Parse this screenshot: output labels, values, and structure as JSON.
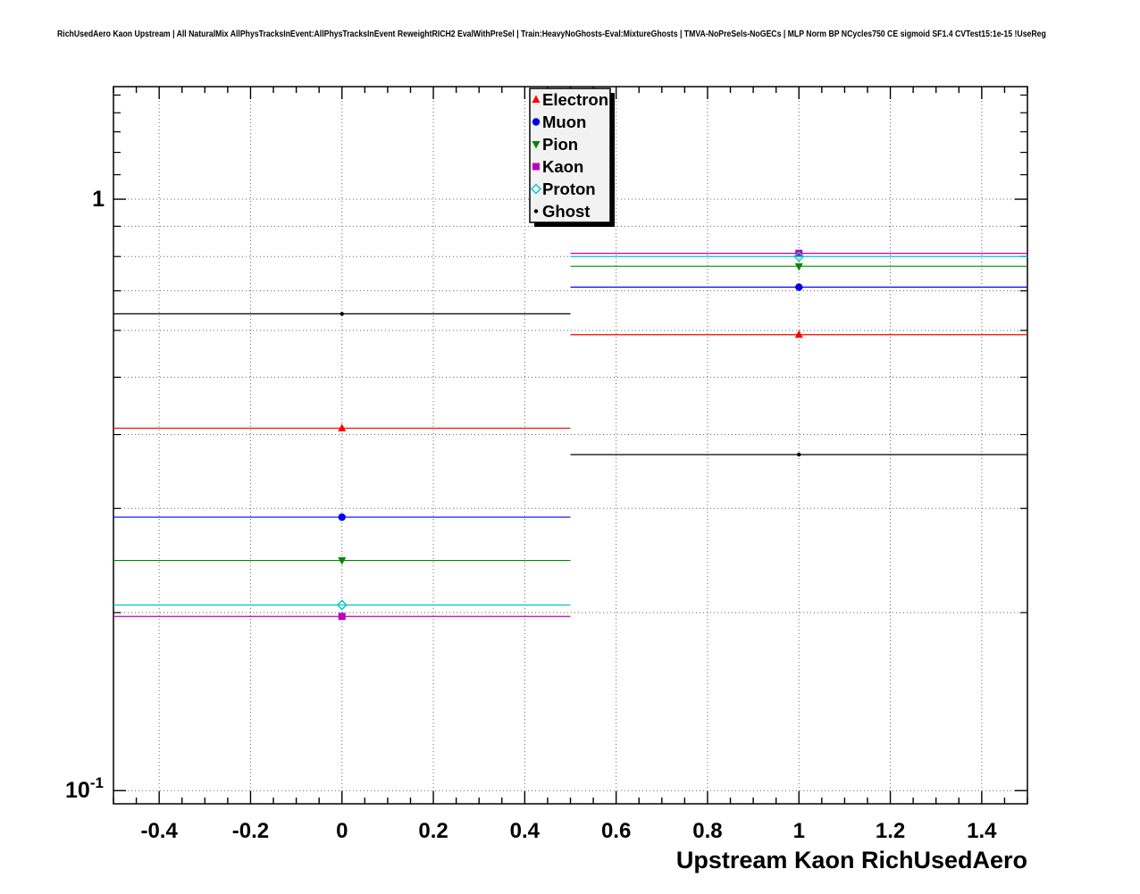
{
  "chart_data": {
    "type": "scatter",
    "title": "RichUsedAero Kaon Upstream | All NaturalMix AllPhysTracksInEvent:AllPhysTracksInEvent ReweightRICH2 EvalWithPreSel | Train:HeavyNoGhosts-Eval:MixtureGhosts | TMVA-NoPreSels-NoGECs | MLP Norm BP NCycles750 CE sigmoid SF1.4 CVTest15:1e-15 !UseReg",
    "xlabel": "Upstream Kaon RichUsedAero",
    "ylabel": "",
    "xlim": [
      -0.5,
      1.5
    ],
    "ylim": [
      0.095,
      1.55
    ],
    "yscale": "log",
    "grid": true,
    "x_ticks": [
      -0.4,
      -0.2,
      0,
      0.2,
      0.4,
      0.6,
      0.8,
      1,
      1.2,
      1.4
    ],
    "x_tick_labels": [
      "-0.4",
      "-0.2",
      "0",
      "0.2",
      "0.4",
      "0.6",
      "0.8",
      "1",
      "1.2",
      "1.4"
    ],
    "y_grid": [
      0.1,
      0.2,
      0.3,
      0.4,
      0.5,
      0.6,
      0.7,
      0.8,
      0.9,
      1.0
    ],
    "y_major_ticks": [
      0.1,
      1.0
    ],
    "y_minor_ticks": [
      0.2,
      0.3,
      0.4,
      0.5,
      0.6,
      0.7,
      0.8,
      0.9,
      1.1,
      1.2,
      1.3,
      1.4,
      1.5
    ],
    "y_tick_labels": {
      "one": "1",
      "tenth_base": "10",
      "tenth_exp": "-1"
    },
    "legend": {
      "position": "top-center",
      "entries": [
        "Electron",
        "Muon",
        "Pion",
        "Kaon",
        "Proton",
        "Ghost"
      ]
    },
    "series": [
      {
        "name": "Electron",
        "color": "#ff0000",
        "marker": "triangle-up",
        "x": [
          0,
          1
        ],
        "y": [
          0.41,
          0.59
        ],
        "xerr": 0.5
      },
      {
        "name": "Muon",
        "color": "#0000ee",
        "marker": "circle",
        "x": [
          0,
          1
        ],
        "y": [
          0.29,
          0.71
        ],
        "xerr": 0.5
      },
      {
        "name": "Pion",
        "color": "#008800",
        "marker": "triangle-down",
        "x": [
          0,
          1
        ],
        "y": [
          0.245,
          0.77
        ],
        "xerr": 0.5
      },
      {
        "name": "Kaon",
        "color": "#bb00bb",
        "marker": "square",
        "x": [
          0,
          1
        ],
        "y": [
          0.197,
          0.81
        ],
        "xerr": 0.5
      },
      {
        "name": "Proton",
        "color": "#00c8c8",
        "marker": "diamond-open",
        "x": [
          0,
          1
        ],
        "y": [
          0.206,
          0.8
        ],
        "xerr": 0.5
      },
      {
        "name": "Ghost",
        "color": "#000000",
        "marker": "dot",
        "x": [
          0,
          1
        ],
        "y": [
          0.64,
          0.37
        ],
        "xerr": 0.5
      }
    ]
  }
}
